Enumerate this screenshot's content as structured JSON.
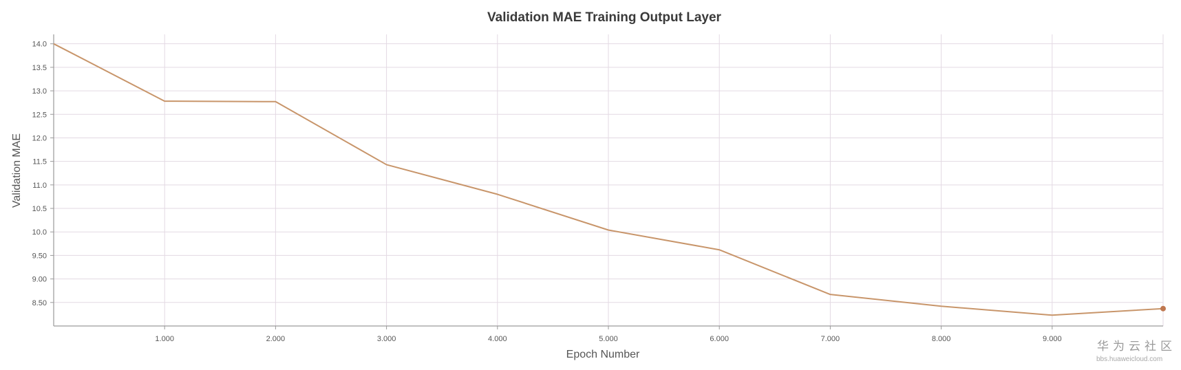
{
  "chart_data": {
    "type": "line",
    "title": "Validation MAE Training Output Layer",
    "xlabel": "Epoch Number",
    "ylabel": "Validation MAE",
    "xlim": [
      0,
      10
    ],
    "ylim": [
      8.0,
      14.2
    ],
    "x_ticks": [
      {
        "value": 1,
        "label": "1.000"
      },
      {
        "value": 2,
        "label": "2.000"
      },
      {
        "value": 3,
        "label": "3.000"
      },
      {
        "value": 4,
        "label": "4.000"
      },
      {
        "value": 5,
        "label": "5.000"
      },
      {
        "value": 6,
        "label": "6.000"
      },
      {
        "value": 7,
        "label": "7.000"
      },
      {
        "value": 8,
        "label": "8.000"
      },
      {
        "value": 9,
        "label": "9.000"
      }
    ],
    "y_ticks": [
      {
        "value": 8.5,
        "label": "8.50"
      },
      {
        "value": 9.0,
        "label": "9.00"
      },
      {
        "value": 9.5,
        "label": "9.50"
      },
      {
        "value": 10.0,
        "label": "10.0"
      },
      {
        "value": 10.5,
        "label": "10.5"
      },
      {
        "value": 11.0,
        "label": "11.0"
      },
      {
        "value": 11.5,
        "label": "11.5"
      },
      {
        "value": 12.0,
        "label": "12.0"
      },
      {
        "value": 12.5,
        "label": "12.5"
      },
      {
        "value": 13.0,
        "label": "13.0"
      },
      {
        "value": 13.5,
        "label": "13.5"
      },
      {
        "value": 14.0,
        "label": "14.0"
      }
    ],
    "grid": true,
    "legend": "none",
    "series": [
      {
        "color": "#c8956a",
        "x": [
          0,
          1,
          2,
          3,
          4,
          5,
          6,
          7,
          8,
          9,
          10
        ],
        "y": [
          14.0,
          12.78,
          12.77,
          11.43,
          10.8,
          10.04,
          9.62,
          8.67,
          8.42,
          8.23,
          8.37
        ]
      }
    ]
  },
  "watermark": {
    "text": "华为云社区",
    "url": "bbs.huaweicloud.com"
  },
  "colors": {
    "grid": "#e3d9e3",
    "axis": "#9a9a9a",
    "line": "#c8956a",
    "end_point": "#c07850"
  }
}
